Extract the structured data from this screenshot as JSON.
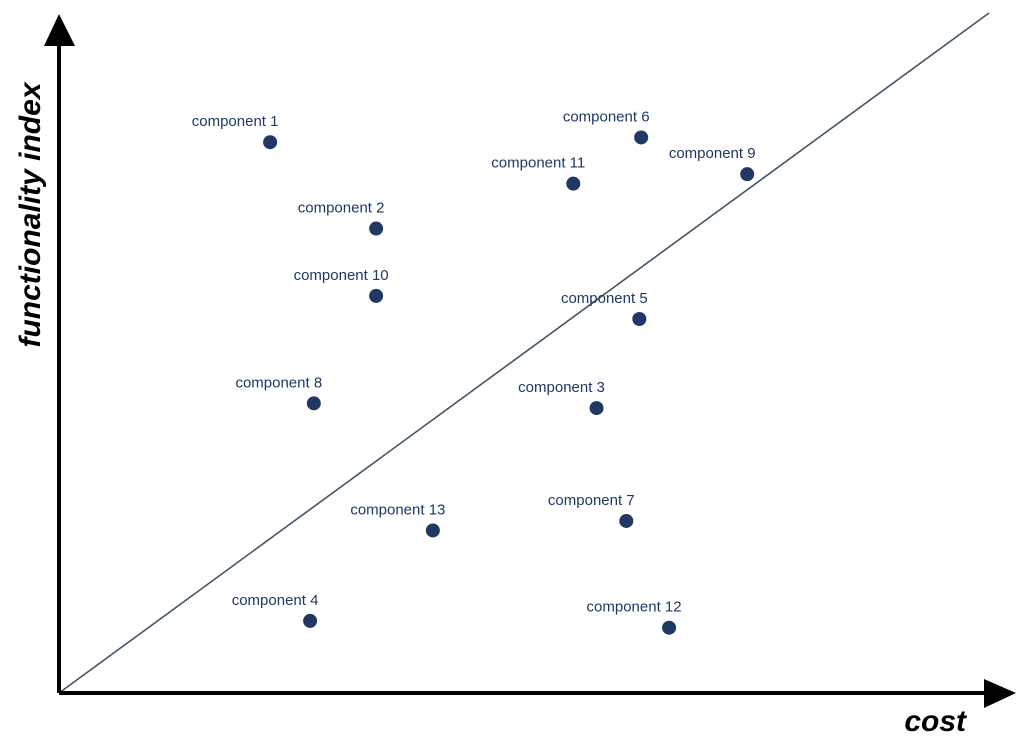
{
  "chart_data": {
    "type": "scatter",
    "title": "",
    "xlabel": "cost",
    "ylabel": "functionality index",
    "grid": false,
    "legend": "none",
    "xlim": [
      0,
      100
    ],
    "ylim": [
      0,
      100
    ],
    "colors": {
      "point": "#1f3864",
      "label": "#1f3864",
      "trend_line": "#44546a",
      "axis": "#000000"
    },
    "points": [
      {
        "label": "component 1",
        "x": 22.7,
        "y": 81.0
      },
      {
        "label": "component 2",
        "x": 34.1,
        "y": 68.3
      },
      {
        "label": "component 3",
        "x": 57.8,
        "y": 41.9
      },
      {
        "label": "component 4",
        "x": 27.0,
        "y": 10.6
      },
      {
        "label": "component 5",
        "x": 62.4,
        "y": 55.0
      },
      {
        "label": "component 6",
        "x": 62.6,
        "y": 81.7
      },
      {
        "label": "component 7",
        "x": 61.0,
        "y": 25.3
      },
      {
        "label": "component 8",
        "x": 27.4,
        "y": 42.6
      },
      {
        "label": "component 9",
        "x": 74.0,
        "y": 76.3
      },
      {
        "label": "component 10",
        "x": 34.1,
        "y": 58.4
      },
      {
        "label": "component 11",
        "x": 55.3,
        "y": 74.9
      },
      {
        "label": "component 12",
        "x": 65.6,
        "y": 9.6
      },
      {
        "label": "component 13",
        "x": 40.2,
        "y": 23.9
      }
    ],
    "reference_line": {
      "x": [
        0,
        100
      ],
      "y": [
        0,
        100
      ]
    }
  }
}
